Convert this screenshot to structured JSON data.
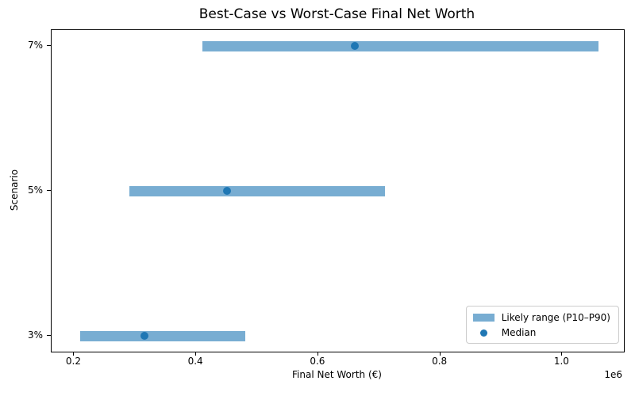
{
  "chart_data": {
    "type": "bar",
    "orientation": "horizontal",
    "title": "Best-Case vs Worst-Case Final Net Worth",
    "xlabel": "Final Net Worth (€)",
    "ylabel": "Scenario",
    "offset_text": "1e6",
    "categories": [
      "7%",
      "5%",
      "3%"
    ],
    "rows": [
      {
        "scenario": "7%",
        "p10": 410000,
        "median": 660000,
        "p90": 1060000
      },
      {
        "scenario": "5%",
        "p10": 290000,
        "median": 450000,
        "p90": 710000
      },
      {
        "scenario": "3%",
        "p10": 210000,
        "median": 315000,
        "p90": 480000
      }
    ],
    "xlim": [
      163000,
      1101000
    ],
    "x_ticks": {
      "values": [
        200000,
        400000,
        600000,
        800000,
        1000000
      ],
      "labels": [
        "0.2",
        "0.4",
        "0.6",
        "0.8",
        "1.0"
      ]
    },
    "grid": false,
    "legend": {
      "position": "lower right",
      "entries": [
        "Likely range (P10–P90)",
        "Median"
      ]
    },
    "colors": {
      "bar": "#78add2",
      "median": "#1f77b4",
      "spine": "#000000",
      "legend_border": "#cccccc"
    }
  }
}
